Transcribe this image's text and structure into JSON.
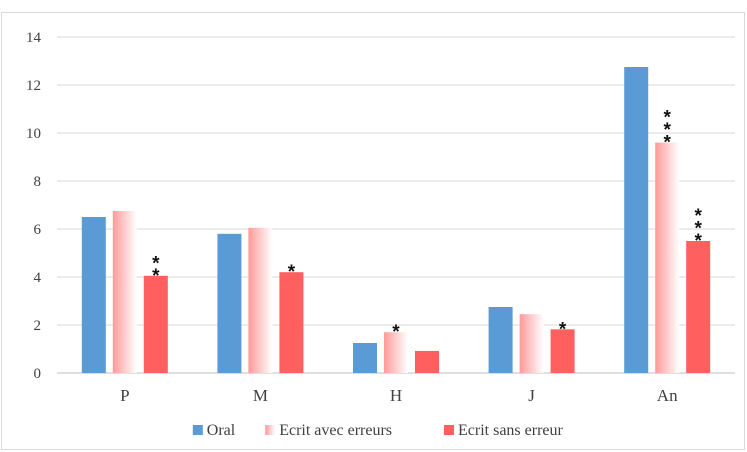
{
  "chart_data": {
    "type": "bar",
    "title": "",
    "xlabel": "",
    "ylabel": "",
    "ylim": [
      0,
      14
    ],
    "yticks": [
      0,
      2,
      4,
      6,
      8,
      10,
      12,
      14
    ],
    "grid": true,
    "legend_position": "bottom",
    "categories": [
      "P",
      "M",
      "H",
      "J",
      "An"
    ],
    "series": [
      {
        "name": "Oral",
        "color": "#5b9bd5",
        "style": "solid",
        "values": [
          6.5,
          5.8,
          1.25,
          2.75,
          12.75
        ],
        "significance": [
          "",
          "",
          "",
          "",
          ""
        ]
      },
      {
        "name": "Ecrit avec erreurs",
        "color": "#ff9a9a",
        "style": "gradient",
        "values": [
          6.75,
          6.05,
          1.7,
          2.45,
          9.6
        ],
        "significance": [
          "",
          "",
          "*",
          "",
          "***"
        ]
      },
      {
        "name": "Ecrit sans erreur",
        "color": "#ff5f5f",
        "style": "solid",
        "values": [
          4.05,
          4.2,
          0.92,
          1.82,
          5.5
        ],
        "significance": [
          "**",
          "*",
          "",
          "*",
          "***"
        ]
      }
    ]
  }
}
